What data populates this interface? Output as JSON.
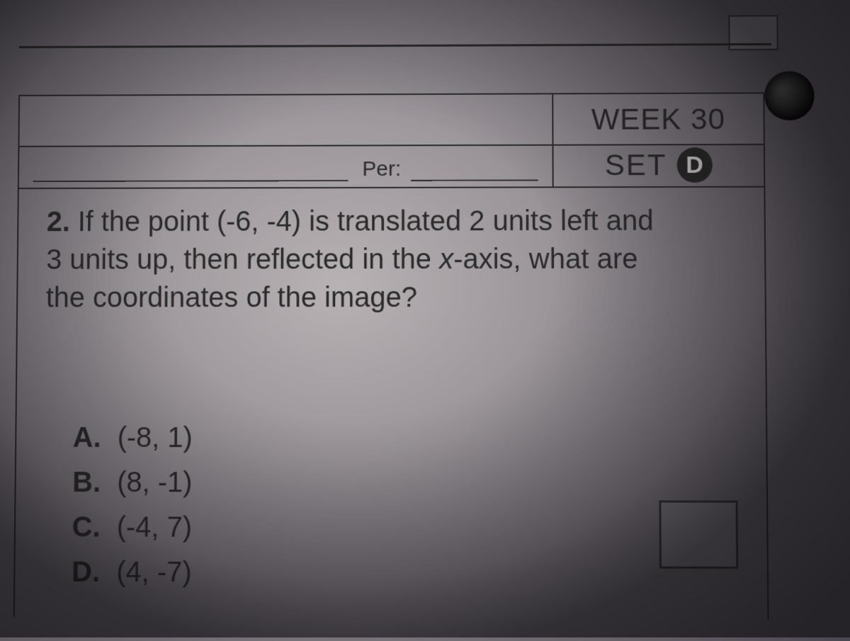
{
  "header": {
    "week_label": "WEEK 30",
    "per_label": "Per:",
    "set_label": "SET",
    "set_letter": "D"
  },
  "question": {
    "number": "2.",
    "text_line1": "If the point (-6, -4) is translated 2 units left and",
    "text_line2": "3 units up, then reflected in the ",
    "axis_italic": "x",
    "text_line2b": "-axis, what are",
    "text_line3": "the coordinates of the image?"
  },
  "choices": {
    "a": {
      "label": "A.",
      "value": "(-8, 1)"
    },
    "b": {
      "label": "B.",
      "value": "(8, -1)"
    },
    "c": {
      "label": "C.",
      "value": "(-4, 7)"
    },
    "d": {
      "label": "D.",
      "value": "(4, -7)"
    }
  },
  "colors": {
    "ink": "#2a2a2a",
    "paper_highlight": "#b8b2b5",
    "paper_shadow": "#4a4650"
  }
}
